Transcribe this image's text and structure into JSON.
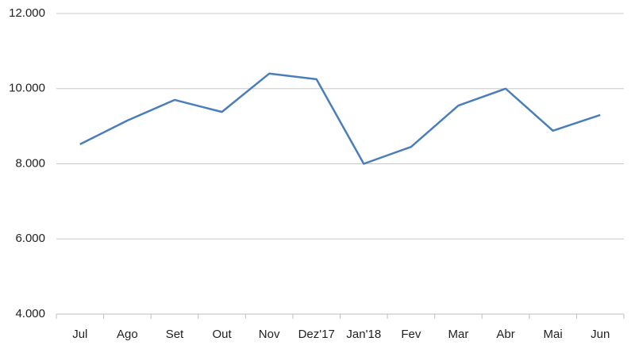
{
  "chart_data": {
    "type": "line",
    "categories": [
      "Jul",
      "Ago",
      "Set",
      "Out",
      "Nov",
      "Dez'17",
      "Jan'18",
      "Fev",
      "Mar",
      "Abr",
      "Mai",
      "Jun"
    ],
    "series": [
      {
        "color": "#4a7ebb",
        "values": [
          8520,
          9150,
          9700,
          9380,
          10400,
          10250,
          8000,
          8450,
          9550,
          10000,
          8880,
          9300
        ]
      }
    ],
    "ylim": [
      4000,
      12000
    ],
    "yticks": [
      {
        "value": 4000,
        "label": "4.000"
      },
      {
        "value": 6000,
        "label": "6.000"
      },
      {
        "value": 8000,
        "label": "8.000"
      },
      {
        "value": 10000,
        "label": "10.000"
      },
      {
        "value": 12000,
        "label": "12.000"
      }
    ],
    "grid": true
  }
}
